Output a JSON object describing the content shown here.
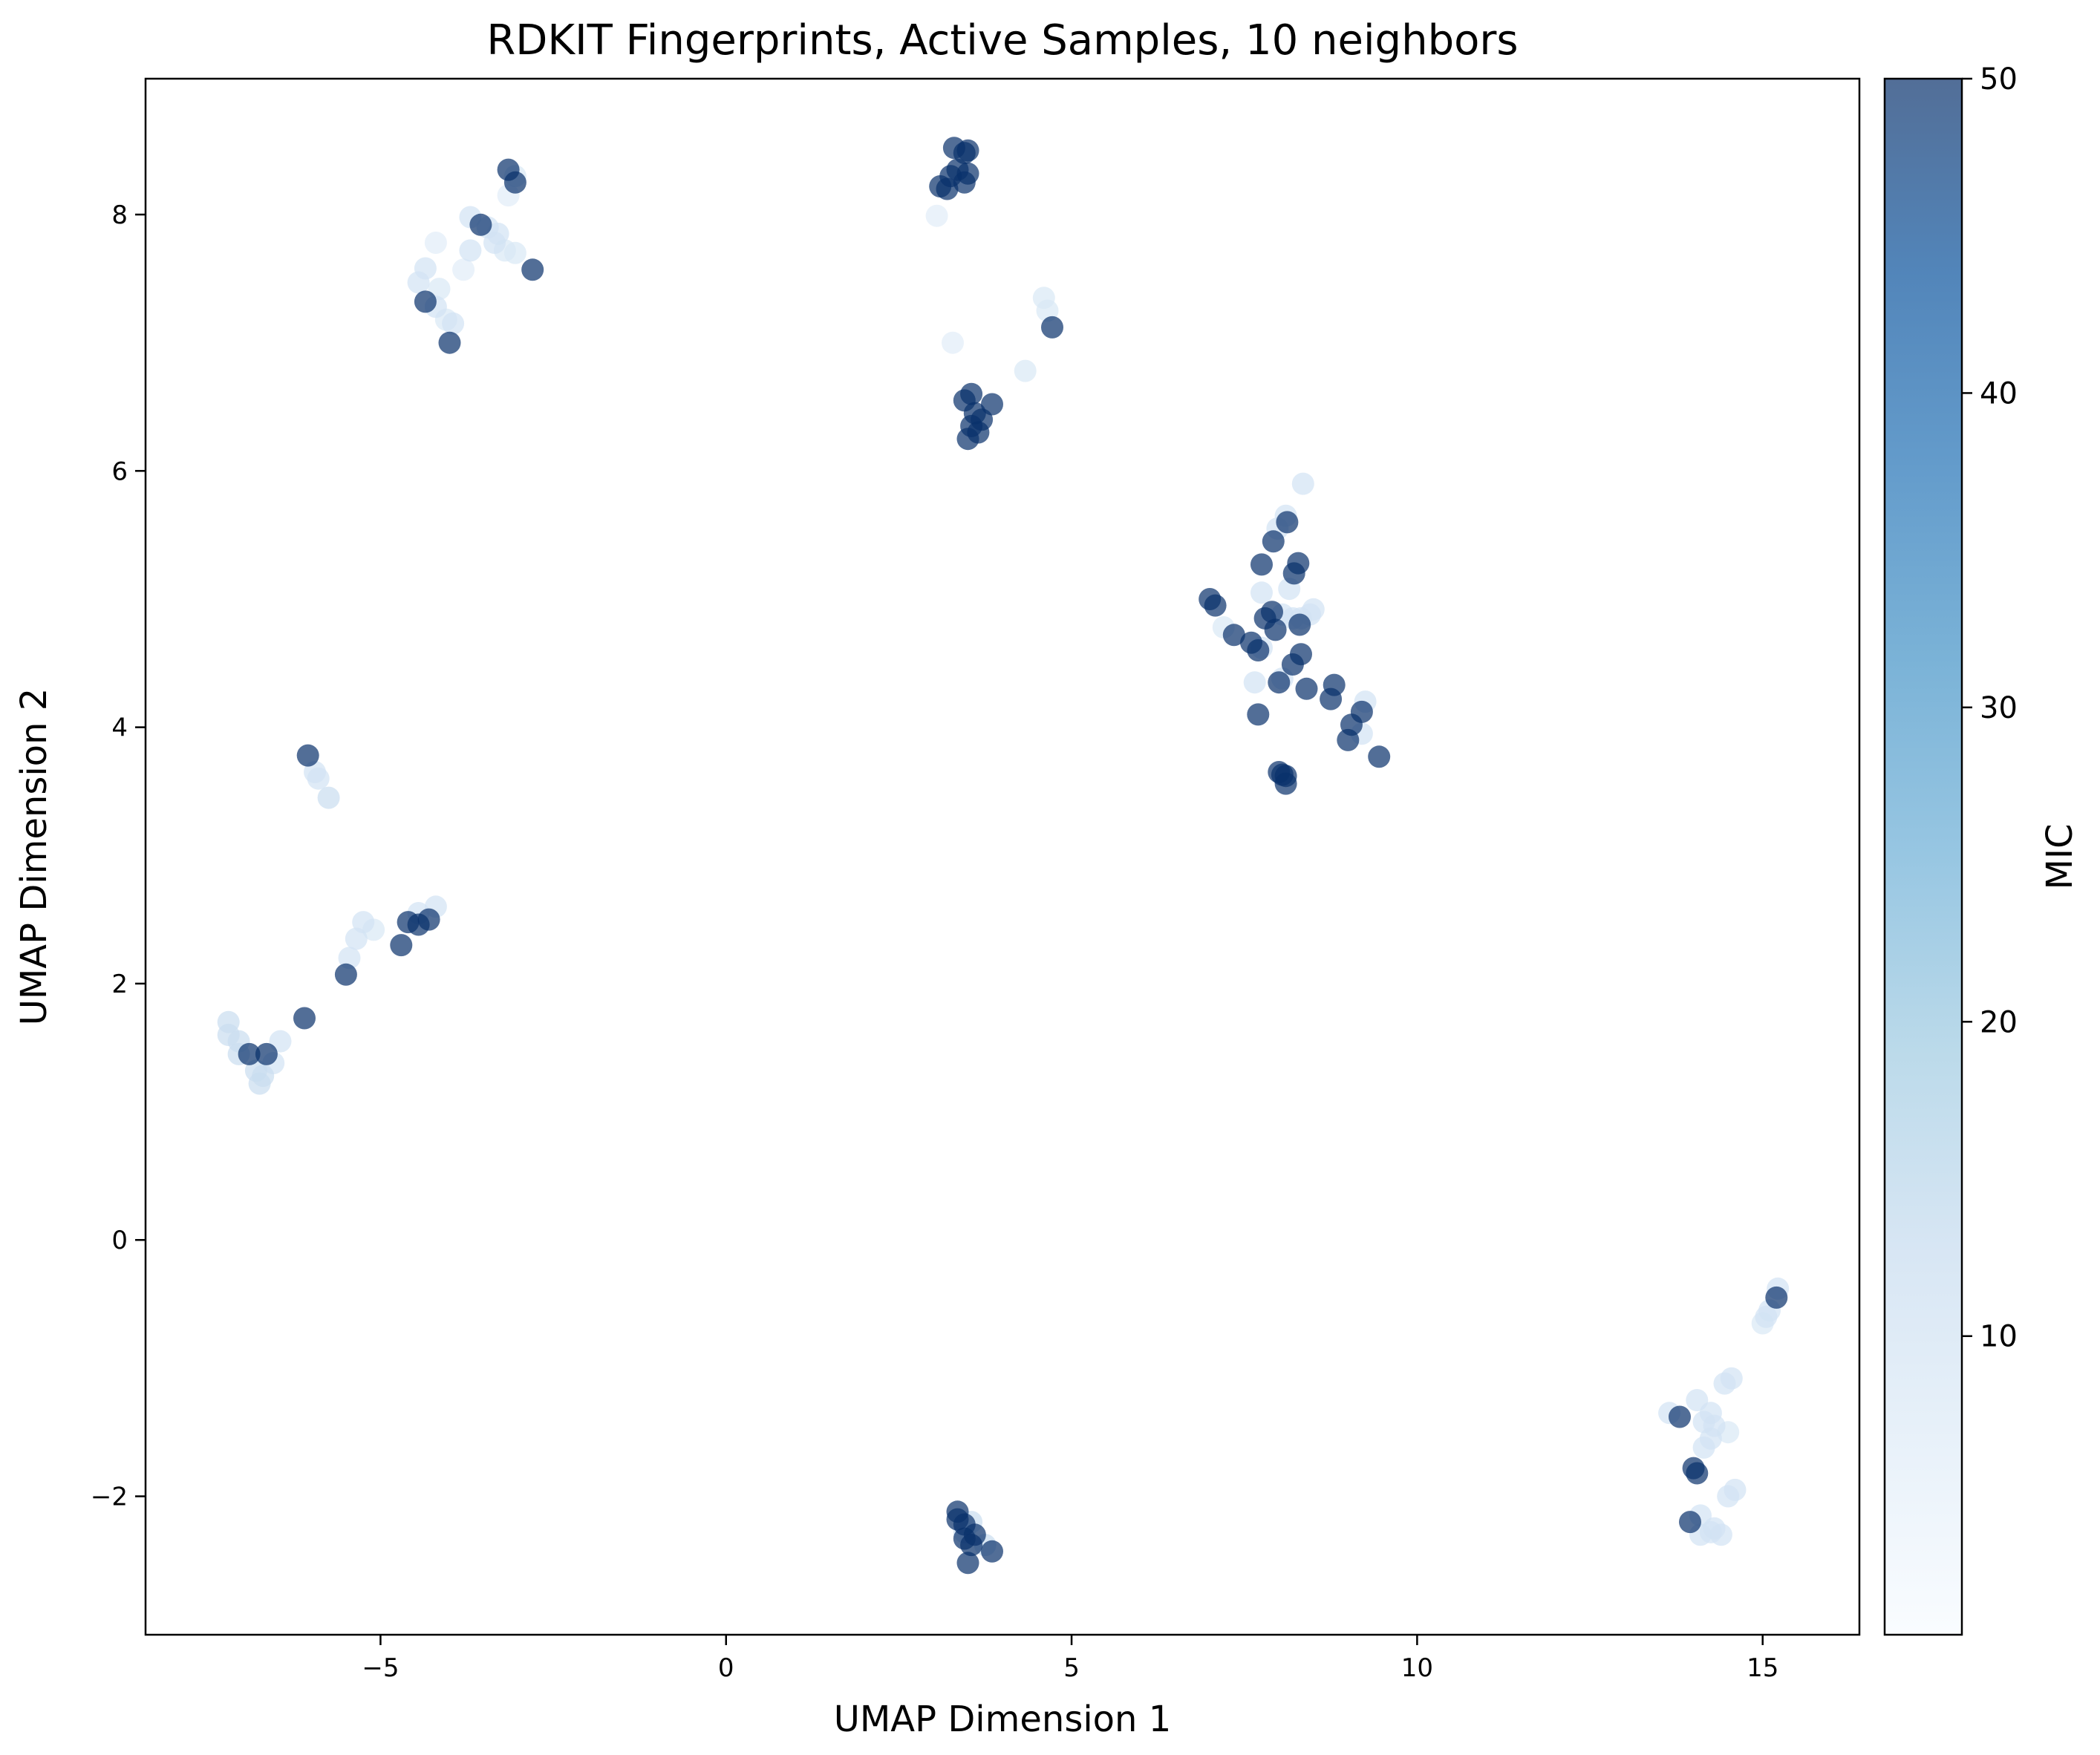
{
  "chart_data": {
    "type": "scatter",
    "title": "RDKIT Fingerprints, Active Samples, 10 neighbors",
    "xlabel": "UMAP Dimension 1",
    "ylabel": "UMAP Dimension 2",
    "xlim": [
      -8.4,
      16.4
    ],
    "ylim": [
      -3.08,
      9.06
    ],
    "xticks": [
      -5,
      0,
      5,
      10,
      15
    ],
    "xtick_labels": [
      "−5",
      "0",
      "5",
      "10",
      "15"
    ],
    "yticks": [
      -2,
      0,
      2,
      4,
      6,
      8
    ],
    "ytick_labels": [
      "−2",
      "0",
      "2",
      "4",
      "6",
      "8"
    ],
    "grid": false,
    "colorbar": {
      "label": "MIC",
      "range": [
        0.5,
        50
      ],
      "ticks": [
        10,
        20,
        30,
        40,
        50
      ],
      "tick_labels": [
        "10",
        "20",
        "30",
        "40",
        "50"
      ],
      "colormap": "Blues",
      "colors": [
        "#f7fbff",
        "#deebf7",
        "#c6dbef",
        "#9ecae1",
        "#6baed6",
        "#4292c6",
        "#2171b5",
        "#08519c",
        "#08306b"
      ],
      "point_alpha": 0.7
    },
    "points": [
      {
        "x": 3.3,
        "y": 8.52,
        "v": 50
      },
      {
        "x": 3.5,
        "y": 8.5,
        "v": 50
      },
      {
        "x": 3.45,
        "y": 8.48,
        "v": 50
      },
      {
        "x": 3.35,
        "y": 8.35,
        "v": 50
      },
      {
        "x": 3.5,
        "y": 8.32,
        "v": 50
      },
      {
        "x": 3.25,
        "y": 8.3,
        "v": 50
      },
      {
        "x": 3.1,
        "y": 8.22,
        "v": 50
      },
      {
        "x": 3.2,
        "y": 8.2,
        "v": 50
      },
      {
        "x": 3.45,
        "y": 8.25,
        "v": 50
      },
      {
        "x": 3.05,
        "y": 7.99,
        "v": 6
      },
      {
        "x": 3.28,
        "y": 7.0,
        "v": 6
      },
      {
        "x": 4.6,
        "y": 7.35,
        "v": 8
      },
      {
        "x": 4.65,
        "y": 7.25,
        "v": 8
      },
      {
        "x": 4.72,
        "y": 7.12,
        "v": 50
      },
      {
        "x": 4.33,
        "y": 6.78,
        "v": 8
      },
      {
        "x": 3.55,
        "y": 6.6,
        "v": 50
      },
      {
        "x": 3.45,
        "y": 6.55,
        "v": 50
      },
      {
        "x": 3.6,
        "y": 6.45,
        "v": 50
      },
      {
        "x": 3.7,
        "y": 6.4,
        "v": 50
      },
      {
        "x": 3.85,
        "y": 6.52,
        "v": 50
      },
      {
        "x": 3.55,
        "y": 6.35,
        "v": 50
      },
      {
        "x": 3.65,
        "y": 6.3,
        "v": 50
      },
      {
        "x": 3.5,
        "y": 6.25,
        "v": 50
      },
      {
        "x": -3.15,
        "y": 8.35,
        "v": 50
      },
      {
        "x": -3.05,
        "y": 8.25,
        "v": 50
      },
      {
        "x": -3.05,
        "y": 8.3,
        "v": 8
      },
      {
        "x": -3.15,
        "y": 8.15,
        "v": 6
      },
      {
        "x": -3.7,
        "y": 7.98,
        "v": 10
      },
      {
        "x": -3.55,
        "y": 7.92,
        "v": 50
      },
      {
        "x": -3.45,
        "y": 7.9,
        "v": 10
      },
      {
        "x": -3.3,
        "y": 7.85,
        "v": 10
      },
      {
        "x": -3.35,
        "y": 7.78,
        "v": 10
      },
      {
        "x": -3.2,
        "y": 7.72,
        "v": 8
      },
      {
        "x": -3.05,
        "y": 7.7,
        "v": 8
      },
      {
        "x": -3.7,
        "y": 7.72,
        "v": 10
      },
      {
        "x": -2.8,
        "y": 7.57,
        "v": 50
      },
      {
        "x": -3.8,
        "y": 7.57,
        "v": 6
      },
      {
        "x": -4.2,
        "y": 7.78,
        "v": 6
      },
      {
        "x": -4.35,
        "y": 7.58,
        "v": 10
      },
      {
        "x": -4.45,
        "y": 7.47,
        "v": 10
      },
      {
        "x": -4.15,
        "y": 7.42,
        "v": 8
      },
      {
        "x": -4.35,
        "y": 7.32,
        "v": 50
      },
      {
        "x": -4.2,
        "y": 7.28,
        "v": 10
      },
      {
        "x": -4.05,
        "y": 7.18,
        "v": 8
      },
      {
        "x": -3.95,
        "y": 7.15,
        "v": 10
      },
      {
        "x": -4.0,
        "y": 7.0,
        "v": 50
      },
      {
        "x": -6.05,
        "y": 3.78,
        "v": 50
      },
      {
        "x": -5.95,
        "y": 3.65,
        "v": 10
      },
      {
        "x": -5.9,
        "y": 3.6,
        "v": 10
      },
      {
        "x": -5.75,
        "y": 3.45,
        "v": 12
      },
      {
        "x": -4.2,
        "y": 2.6,
        "v": 10
      },
      {
        "x": -4.45,
        "y": 2.55,
        "v": 10
      },
      {
        "x": -4.3,
        "y": 2.5,
        "v": 50
      },
      {
        "x": -4.6,
        "y": 2.48,
        "v": 50
      },
      {
        "x": -4.45,
        "y": 2.46,
        "v": 50
      },
      {
        "x": -4.7,
        "y": 2.3,
        "v": 50
      },
      {
        "x": -5.25,
        "y": 2.48,
        "v": 10
      },
      {
        "x": -5.1,
        "y": 2.42,
        "v": 8
      },
      {
        "x": -5.35,
        "y": 2.35,
        "v": 10
      },
      {
        "x": -5.45,
        "y": 2.2,
        "v": 10
      },
      {
        "x": -5.5,
        "y": 2.07,
        "v": 50
      },
      {
        "x": -6.1,
        "y": 1.73,
        "v": 50
      },
      {
        "x": -7.2,
        "y": 1.7,
        "v": 12
      },
      {
        "x": -7.2,
        "y": 1.6,
        "v": 12
      },
      {
        "x": -7.05,
        "y": 1.55,
        "v": 12
      },
      {
        "x": -6.45,
        "y": 1.55,
        "v": 10
      },
      {
        "x": -7.05,
        "y": 1.45,
        "v": 12
      },
      {
        "x": -6.9,
        "y": 1.45,
        "v": 50
      },
      {
        "x": -6.65,
        "y": 1.45,
        "v": 50
      },
      {
        "x": -6.55,
        "y": 1.38,
        "v": 10
      },
      {
        "x": -6.8,
        "y": 1.32,
        "v": 12
      },
      {
        "x": -6.7,
        "y": 1.28,
        "v": 12
      },
      {
        "x": -6.75,
        "y": 1.22,
        "v": 12
      },
      {
        "x": 7.0,
        "y": 5.0,
        "v": 50
      },
      {
        "x": 7.08,
        "y": 4.95,
        "v": 50
      },
      {
        "x": 7.2,
        "y": 4.78,
        "v": 8
      },
      {
        "x": 7.35,
        "y": 4.72,
        "v": 50
      },
      {
        "x": 7.6,
        "y": 4.66,
        "v": 50
      },
      {
        "x": 7.7,
        "y": 4.6,
        "v": 50
      },
      {
        "x": 7.65,
        "y": 4.35,
        "v": 10
      },
      {
        "x": 7.75,
        "y": 4.62,
        "v": 10
      },
      {
        "x": 7.7,
        "y": 4.1,
        "v": 50
      },
      {
        "x": 7.75,
        "y": 5.05,
        "v": 10
      },
      {
        "x": 7.75,
        "y": 5.27,
        "v": 50
      },
      {
        "x": 7.8,
        "y": 4.85,
        "v": 50
      },
      {
        "x": 7.9,
        "y": 4.9,
        "v": 50
      },
      {
        "x": 7.95,
        "y": 4.76,
        "v": 50
      },
      {
        "x": 7.92,
        "y": 5.45,
        "v": 50
      },
      {
        "x": 7.98,
        "y": 5.55,
        "v": 10
      },
      {
        "x": 8.1,
        "y": 5.65,
        "v": 10
      },
      {
        "x": 8.12,
        "y": 5.6,
        "v": 50
      },
      {
        "x": 8.35,
        "y": 5.9,
        "v": 10
      },
      {
        "x": 8.28,
        "y": 5.28,
        "v": 50
      },
      {
        "x": 8.22,
        "y": 5.2,
        "v": 50
      },
      {
        "x": 8.15,
        "y": 5.08,
        "v": 10
      },
      {
        "x": 8.05,
        "y": 4.88,
        "v": 10
      },
      {
        "x": 8.2,
        "y": 4.85,
        "v": 10
      },
      {
        "x": 8.3,
        "y": 4.8,
        "v": 50
      },
      {
        "x": 8.32,
        "y": 4.85,
        "v": 10
      },
      {
        "x": 8.5,
        "y": 4.92,
        "v": 10
      },
      {
        "x": 8.45,
        "y": 4.88,
        "v": 10
      },
      {
        "x": 8.32,
        "y": 4.57,
        "v": 50
      },
      {
        "x": 8.2,
        "y": 4.49,
        "v": 50
      },
      {
        "x": 8.0,
        "y": 4.35,
        "v": 50
      },
      {
        "x": 8.05,
        "y": 4.38,
        "v": 10
      },
      {
        "x": 8.4,
        "y": 4.3,
        "v": 50
      },
      {
        "x": 8.75,
        "y": 4.22,
        "v": 50
      },
      {
        "x": 8.8,
        "y": 4.33,
        "v": 50
      },
      {
        "x": 9.25,
        "y": 4.2,
        "v": 10
      },
      {
        "x": 9.2,
        "y": 4.12,
        "v": 50
      },
      {
        "x": 9.05,
        "y": 4.02,
        "v": 50
      },
      {
        "x": 9.2,
        "y": 3.95,
        "v": 10
      },
      {
        "x": 9.0,
        "y": 3.9,
        "v": 50
      },
      {
        "x": 9.45,
        "y": 3.77,
        "v": 50
      },
      {
        "x": 8.0,
        "y": 3.65,
        "v": 50
      },
      {
        "x": 8.05,
        "y": 3.63,
        "v": 50
      },
      {
        "x": 8.1,
        "y": 3.62,
        "v": 50
      },
      {
        "x": 8.1,
        "y": 3.56,
        "v": 50
      },
      {
        "x": 3.35,
        "y": -2.12,
        "v": 50
      },
      {
        "x": 3.35,
        "y": -2.18,
        "v": 50
      },
      {
        "x": 3.45,
        "y": -2.22,
        "v": 50
      },
      {
        "x": 3.55,
        "y": -2.2,
        "v": 12
      },
      {
        "x": 3.45,
        "y": -2.28,
        "v": 12
      },
      {
        "x": 3.6,
        "y": -2.3,
        "v": 50
      },
      {
        "x": 3.45,
        "y": -2.33,
        "v": 50
      },
      {
        "x": 3.55,
        "y": -2.38,
        "v": 50
      },
      {
        "x": 3.75,
        "y": -2.38,
        "v": 12
      },
      {
        "x": 3.85,
        "y": -2.43,
        "v": 50
      },
      {
        "x": 3.5,
        "y": -2.52,
        "v": 50
      },
      {
        "x": 15.22,
        "y": -0.38,
        "v": 10
      },
      {
        "x": 15.2,
        "y": -0.45,
        "v": 50
      },
      {
        "x": 15.1,
        "y": -0.55,
        "v": 10
      },
      {
        "x": 15.05,
        "y": -0.6,
        "v": 10
      },
      {
        "x": 15.0,
        "y": -0.65,
        "v": 8
      },
      {
        "x": 14.55,
        "y": -1.08,
        "v": 10
      },
      {
        "x": 14.45,
        "y": -1.12,
        "v": 10
      },
      {
        "x": 14.05,
        "y": -1.25,
        "v": 10
      },
      {
        "x": 14.25,
        "y": -1.35,
        "v": 10
      },
      {
        "x": 13.65,
        "y": -1.35,
        "v": 10
      },
      {
        "x": 13.8,
        "y": -1.38,
        "v": 50
      },
      {
        "x": 14.15,
        "y": -1.42,
        "v": 10
      },
      {
        "x": 14.3,
        "y": -1.45,
        "v": 10
      },
      {
        "x": 14.5,
        "y": -1.5,
        "v": 8
      },
      {
        "x": 14.25,
        "y": -1.55,
        "v": 10
      },
      {
        "x": 14.15,
        "y": -1.62,
        "v": 10
      },
      {
        "x": 14.0,
        "y": -1.78,
        "v": 50
      },
      {
        "x": 14.05,
        "y": -1.82,
        "v": 50
      },
      {
        "x": 14.6,
        "y": -1.95,
        "v": 10
      },
      {
        "x": 14.5,
        "y": -2.0,
        "v": 10
      },
      {
        "x": 14.1,
        "y": -2.15,
        "v": 10
      },
      {
        "x": 13.95,
        "y": -2.2,
        "v": 50
      },
      {
        "x": 14.3,
        "y": -2.25,
        "v": 10
      },
      {
        "x": 14.1,
        "y": -2.3,
        "v": 10
      },
      {
        "x": 14.4,
        "y": -2.3,
        "v": 10
      },
      {
        "x": 14.25,
        "y": -2.28,
        "v": 10
      }
    ]
  }
}
